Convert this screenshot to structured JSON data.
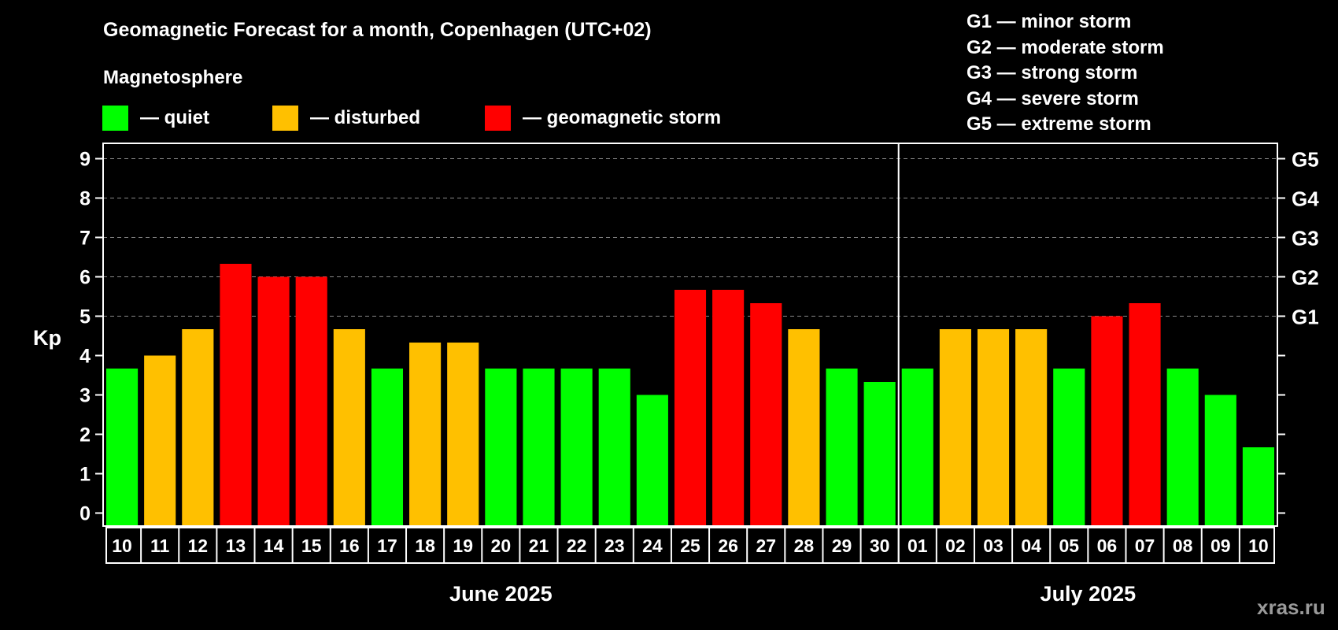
{
  "title": "Geomagnetic Forecast for a month, Copenhagen (UTC+02)",
  "legend": {
    "heading": "Magnetosphere",
    "items": [
      {
        "label": "— quiet",
        "color": "#00ff00"
      },
      {
        "label": "— disturbed",
        "color": "#ffc000"
      },
      {
        "label": "— geomagnetic storm",
        "color": "#ff0000"
      }
    ]
  },
  "storm_scale": [
    "G1 — minor storm",
    "G2 — moderate storm",
    "G3 — strong storm",
    "G4 — severe storm",
    "G5 — extreme storm"
  ],
  "site": "xras.ru",
  "chart_data": {
    "type": "bar",
    "title": "Geomagnetic Forecast for a month, Copenhagen (UTC+02)",
    "ylabel": "Kp",
    "ylim": [
      0,
      9
    ],
    "yticks": [
      "0",
      "1",
      "2",
      "3",
      "4",
      "5",
      "6",
      "7",
      "8",
      "9"
    ],
    "right_ticks": [
      {
        "value": 5,
        "label": "G1"
      },
      {
        "value": 6,
        "label": "G2"
      },
      {
        "value": 7,
        "label": "G3"
      },
      {
        "value": 8,
        "label": "G4"
      },
      {
        "value": 9,
        "label": "G5"
      }
    ],
    "grid": "dashed horizontal from 5 to 9",
    "months": [
      {
        "label": "June 2025",
        "count": 21
      },
      {
        "label": "July 2025",
        "count": 10
      }
    ],
    "categories": [
      "10",
      "11",
      "12",
      "13",
      "14",
      "15",
      "16",
      "17",
      "18",
      "19",
      "20",
      "21",
      "22",
      "23",
      "24",
      "25",
      "26",
      "27",
      "28",
      "29",
      "30",
      "01",
      "02",
      "03",
      "04",
      "05",
      "06",
      "07",
      "08",
      "09",
      "10"
    ],
    "values": [
      3.67,
      4,
      4.67,
      6.33,
      6,
      6,
      4.67,
      3.67,
      4.33,
      4.33,
      3.67,
      3.67,
      3.67,
      3.67,
      3,
      5.67,
      5.67,
      5.33,
      4.67,
      3.67,
      3.33,
      3.67,
      4.67,
      4.67,
      4.67,
      3.67,
      5,
      5.33,
      3.67,
      3,
      1.67
    ],
    "status": [
      "quiet",
      "disturbed",
      "disturbed",
      "storm",
      "storm",
      "storm",
      "disturbed",
      "quiet",
      "disturbed",
      "disturbed",
      "quiet",
      "quiet",
      "quiet",
      "quiet",
      "quiet",
      "storm",
      "storm",
      "storm",
      "disturbed",
      "quiet",
      "quiet",
      "quiet",
      "disturbed",
      "disturbed",
      "disturbed",
      "quiet",
      "storm",
      "storm",
      "quiet",
      "quiet",
      "quiet"
    ],
    "colors": {
      "quiet": "#00ff00",
      "disturbed": "#ffc000",
      "storm": "#ff0000"
    }
  }
}
